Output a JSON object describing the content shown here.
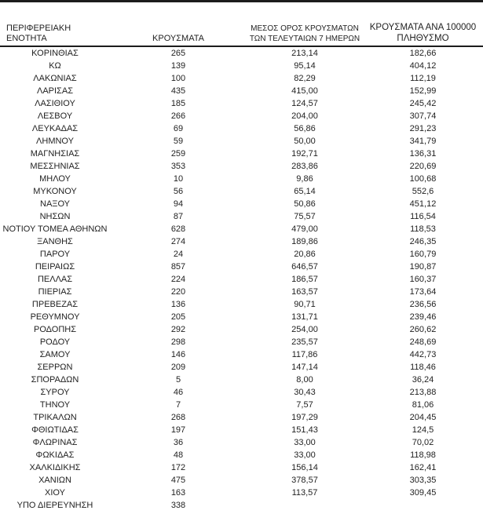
{
  "table": {
    "headers": {
      "region": "ΠΕΡΙΦΕΡΕΙΑΚΗ ΕΝΟΤΗΤΑ",
      "cases": "ΚΡΟΥΣΜΑΤΑ",
      "avg7_line1": "ΜΕΣΟΣ ΟΡΟΣ ΚΡΟΥΣΜΑΤΩΝ",
      "avg7_line2": "ΤΩΝ ΤΕΛΕΥΤΑΙΩΝ 7 ΗΜΕΡΩΝ",
      "per100k_line1": "ΚΡΟΥΣΜΑΤΑ ΑΝΑ 100000",
      "per100k_line2": "ΠΛΗΘΥΣΜΟ"
    },
    "rows": [
      {
        "region": "ΚΟΡΙΝΘΙΑΣ",
        "cases": "265",
        "avg7": "213,14",
        "per100k": "182,66"
      },
      {
        "region": "ΚΩ",
        "cases": "139",
        "avg7": "95,14",
        "per100k": "404,12"
      },
      {
        "region": "ΛΑΚΩΝΙΑΣ",
        "cases": "100",
        "avg7": "82,29",
        "per100k": "112,19"
      },
      {
        "region": "ΛΑΡΙΣΑΣ",
        "cases": "435",
        "avg7": "415,00",
        "per100k": "152,99"
      },
      {
        "region": "ΛΑΣΙΘΙΟΥ",
        "cases": "185",
        "avg7": "124,57",
        "per100k": "245,42"
      },
      {
        "region": "ΛΕΣΒΟΥ",
        "cases": "266",
        "avg7": "204,00",
        "per100k": "307,74"
      },
      {
        "region": "ΛΕΥΚΑΔΑΣ",
        "cases": "69",
        "avg7": "56,86",
        "per100k": "291,23"
      },
      {
        "region": "ΛΗΜΝΟΥ",
        "cases": "59",
        "avg7": "50,00",
        "per100k": "341,79"
      },
      {
        "region": "ΜΑΓΝΗΣΙΑΣ",
        "cases": "259",
        "avg7": "192,71",
        "per100k": "136,31"
      },
      {
        "region": "ΜΕΣΣΗΝΙΑΣ",
        "cases": "353",
        "avg7": "283,86",
        "per100k": "220,69"
      },
      {
        "region": "ΜΗΛΟΥ",
        "cases": "10",
        "avg7": "9,86",
        "per100k": "100,68"
      },
      {
        "region": "ΜΥΚΟΝΟΥ",
        "cases": "56",
        "avg7": "65,14",
        "per100k": "552,6"
      },
      {
        "region": "ΝΑΞΟΥ",
        "cases": "94",
        "avg7": "50,86",
        "per100k": "451,12"
      },
      {
        "region": "ΝΗΣΩΝ",
        "cases": "87",
        "avg7": "75,57",
        "per100k": "116,54"
      },
      {
        "region": "ΝΟΤΙΟΥ ΤΟΜΕΑ ΑΘΗΝΩΝ",
        "cases": "628",
        "avg7": "479,00",
        "per100k": "118,53"
      },
      {
        "region": "ΞΑΝΘΗΣ",
        "cases": "274",
        "avg7": "189,86",
        "per100k": "246,35"
      },
      {
        "region": "ΠΑΡΟΥ",
        "cases": "24",
        "avg7": "20,86",
        "per100k": "160,79"
      },
      {
        "region": "ΠΕΙΡΑΙΩΣ",
        "cases": "857",
        "avg7": "646,57",
        "per100k": "190,87"
      },
      {
        "region": "ΠΕΛΛΑΣ",
        "cases": "224",
        "avg7": "186,57",
        "per100k": "160,37"
      },
      {
        "region": "ΠΙΕΡΙΑΣ",
        "cases": "220",
        "avg7": "163,57",
        "per100k": "173,64"
      },
      {
        "region": "ΠΡΕΒΕΖΑΣ",
        "cases": "136",
        "avg7": "90,71",
        "per100k": "236,56"
      },
      {
        "region": "ΡΕΘΥΜΝΟΥ",
        "cases": "205",
        "avg7": "131,71",
        "per100k": "239,46"
      },
      {
        "region": "ΡΟΔΟΠΗΣ",
        "cases": "292",
        "avg7": "254,00",
        "per100k": "260,62"
      },
      {
        "region": "ΡΟΔΟΥ",
        "cases": "298",
        "avg7": "235,57",
        "per100k": "248,69"
      },
      {
        "region": "ΣΑΜΟΥ",
        "cases": "146",
        "avg7": "117,86",
        "per100k": "442,73"
      },
      {
        "region": "ΣΕΡΡΩΝ",
        "cases": "209",
        "avg7": "147,14",
        "per100k": "118,46"
      },
      {
        "region": "ΣΠΟΡΑΔΩΝ",
        "cases": "5",
        "avg7": "8,00",
        "per100k": "36,24"
      },
      {
        "region": "ΣΥΡΟΥ",
        "cases": "46",
        "avg7": "30,43",
        "per100k": "213,88"
      },
      {
        "region": "ΤΗΝΟΥ",
        "cases": "7",
        "avg7": "7,57",
        "per100k": "81,06"
      },
      {
        "region": "ΤΡΙΚΑΛΩΝ",
        "cases": "268",
        "avg7": "197,29",
        "per100k": "204,45"
      },
      {
        "region": "ΦΘΙΩΤΙΔΑΣ",
        "cases": "197",
        "avg7": "151,43",
        "per100k": "124,5"
      },
      {
        "region": "ΦΛΩΡΙΝΑΣ",
        "cases": "36",
        "avg7": "33,00",
        "per100k": "70,02"
      },
      {
        "region": "ΦΩΚΙΔΑΣ",
        "cases": "48",
        "avg7": "33,00",
        "per100k": "118,98"
      },
      {
        "region": "ΧΑΛΚΙΔΙΚΗΣ",
        "cases": "172",
        "avg7": "156,14",
        "per100k": "162,41"
      },
      {
        "region": "ΧΑΝΙΩΝ",
        "cases": "475",
        "avg7": "378,57",
        "per100k": "303,35"
      },
      {
        "region": "ΧΙΟΥ",
        "cases": "163",
        "avg7": "113,57",
        "per100k": "309,45"
      },
      {
        "region": "ΥΠΟ ΔΙΕΡΕΥΝΗΣΗ",
        "cases": "338",
        "avg7": "",
        "per100k": ""
      }
    ]
  },
  "colors": {
    "text": "#1f1f1f",
    "border": "#1c1c1c",
    "background": "#ffffff"
  }
}
